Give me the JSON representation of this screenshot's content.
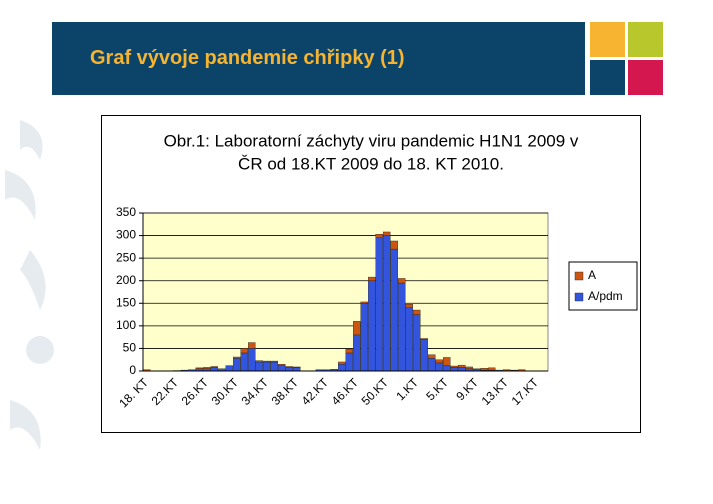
{
  "header": {
    "title": "Graf vývoje pandemie chřipky (1)"
  },
  "chart_data": {
    "type": "bar",
    "stacked": true,
    "title": [
      "Obr.1: Laboratorní záchyty viru pandemic H1N1 2009 v",
      "ČR od 18.KT 2009 do 18. KT 2010."
    ],
    "categories": [
      "18. KT",
      null,
      null,
      null,
      "22.KT",
      null,
      null,
      null,
      "26.KT",
      null,
      null,
      null,
      "30.KT",
      null,
      null,
      null,
      "34.KT",
      null,
      null,
      null,
      "38.KT",
      null,
      null,
      null,
      "42.KT",
      null,
      null,
      null,
      "46.KT",
      null,
      null,
      null,
      "50.KT",
      null,
      null,
      null,
      "1.KT",
      null,
      null,
      null,
      "5.KT",
      null,
      null,
      null,
      "9.KT",
      null,
      null,
      null,
      "13.KT",
      null,
      null,
      null,
      "17.KT",
      null
    ],
    "series": [
      {
        "name": "A/pdm",
        "color": "#3355dd",
        "values": [
          0,
          0,
          0,
          0,
          1,
          2,
          3,
          5,
          5,
          8,
          5,
          12,
          28,
          40,
          50,
          20,
          20,
          20,
          12,
          8,
          8,
          0,
          0,
          3,
          3,
          4,
          15,
          40,
          80,
          150,
          200,
          295,
          300,
          270,
          195,
          140,
          125,
          70,
          28,
          18,
          12,
          8,
          8,
          5,
          3,
          2,
          2,
          2,
          1,
          1,
          0,
          0,
          0,
          0
        ]
      },
      {
        "name": "A",
        "color": "#cc5511",
        "values": [
          3,
          0,
          0,
          0,
          0,
          0,
          0,
          2,
          3,
          2,
          0,
          0,
          3,
          10,
          13,
          3,
          2,
          2,
          3,
          2,
          1,
          0,
          0,
          0,
          0,
          0,
          5,
          8,
          30,
          3,
          8,
          8,
          8,
          18,
          10,
          8,
          10,
          2,
          8,
          7,
          18,
          3,
          5,
          4,
          2,
          4,
          5,
          0,
          2,
          1,
          3,
          0,
          0,
          0
        ]
      }
    ],
    "ylim": [
      0,
      350
    ],
    "yticks": [
      0,
      50,
      100,
      150,
      200,
      250,
      300,
      350
    ],
    "grid": true,
    "plot_background": "#ffffcc",
    "legend": "right"
  }
}
